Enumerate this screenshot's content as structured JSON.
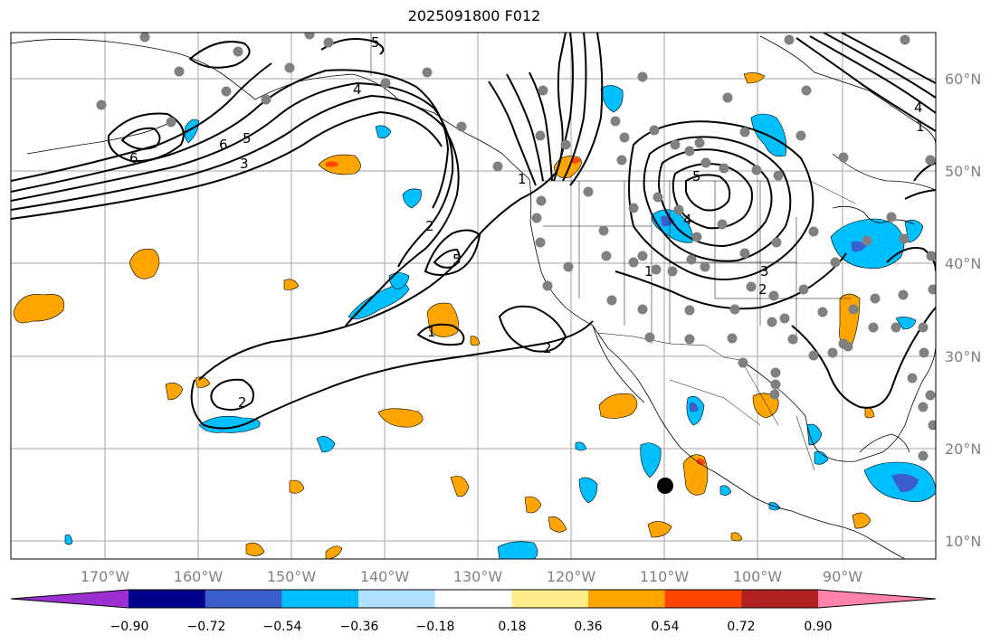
{
  "title": "2025091800 F012",
  "map": {
    "lat_labels": [
      "60°N",
      "50°N",
      "40°N",
      "30°N",
      "20°N",
      "10°N"
    ],
    "lon_labels": [
      "170°W",
      "160°W",
      "150°W",
      "140°W",
      "130°W",
      "120°W",
      "110°W",
      "100°W",
      "90°W"
    ]
  },
  "contour_labels": [
    "6",
    "5",
    "4",
    "3",
    "2",
    "1"
  ],
  "colorbar": {
    "ticks": [
      "−0.90",
      "−0.72",
      "−0.54",
      "−0.36",
      "−0.18",
      "0.18",
      "0.36",
      "0.54",
      "0.72",
      "0.90"
    ],
    "colors": [
      "#9b30d0",
      "#00008b",
      "#3a5fcd",
      "#00bfff",
      "#b0e2ff",
      "#ffffff",
      "#ffec8b",
      "#ffa500",
      "#ff4500",
      "#b22222",
      "#ff82ab"
    ]
  },
  "colors": {
    "positive_fill": "#ffa500",
    "negative_fill": "#00bfff",
    "station_dot": "#808080",
    "marker": "#000000"
  }
}
